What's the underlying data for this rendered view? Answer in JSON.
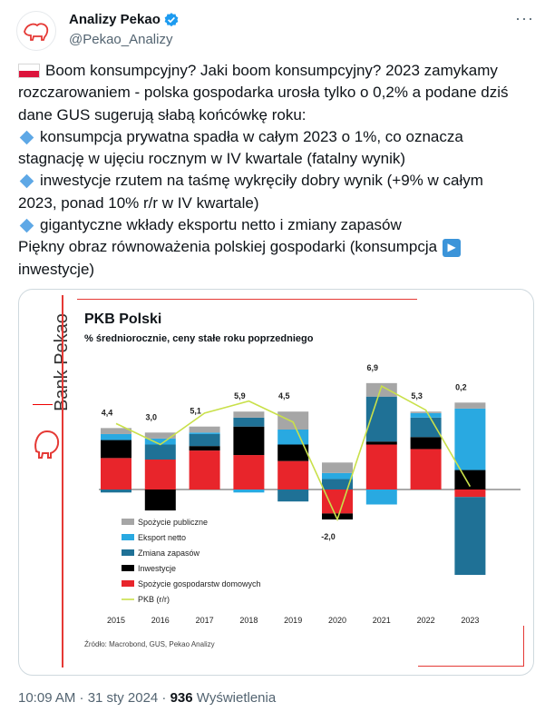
{
  "author": {
    "name": "Analizy Pekao",
    "handle": "@Pekao_Analizy"
  },
  "more_icon": "more-horizontal-icon",
  "tweet_lines": {
    "l1": "Boom konsumpcyjny? Jaki boom konsumpcyjny? 2023 zamykamy",
    "l2": "rozczarowaniem - polska gospodarka urosła tylko o 0,2% a podane dziś",
    "l3": "dane GUS sugerują słabą końcówkę roku:",
    "l4": "konsumpcja prywatna spadła w całym 2023 o 1%, co oznacza",
    "l5": "stagnację w ujęciu rocznym w IV kwartale (fatalny wynik)",
    "l6": "inwestycje rzutem na taśmę wykręciły dobry wynik (+9% w całym",
    "l7": "2023, ponad 10% r/r w IV kwartale)",
    "l8": "gigantyczne wkłady eksportu netto i zmiany zapasów",
    "l9": "Piękny obraz równoważenia polskiej gospodarki (konsumpcja",
    "l10": "inwestycje)"
  },
  "media": {
    "brand": "Bank Pekao",
    "source": "Źródło: Macrobond, GUS, Pekao Analizy"
  },
  "chart_data": {
    "type": "bar",
    "title": "PKB Polski",
    "subtitle": "% średniorocznie, ceny stałe roku poprzedniego",
    "categories": [
      "2015",
      "2016",
      "2017",
      "2018",
      "2019",
      "2020",
      "2021",
      "2022",
      "2023"
    ],
    "series": [
      {
        "name": "Spożycie gospodarstw domowych",
        "color": "#e8252b",
        "values": [
          2.1,
          2.0,
          2.6,
          2.3,
          1.9,
          -1.6,
          3.0,
          2.7,
          -0.5
        ]
      },
      {
        "name": "Inwestycje",
        "color": "#000000",
        "values": [
          1.2,
          -1.4,
          0.3,
          1.9,
          1.1,
          -0.4,
          0.2,
          0.8,
          1.3
        ]
      },
      {
        "name": "Zmiana zapasów",
        "color": "#1f7196",
        "values": [
          -0.2,
          1.0,
          0.8,
          0.6,
          -0.8,
          0.7,
          3.0,
          1.3,
          -5.2
        ]
      },
      {
        "name": "Eksport netto",
        "color": "#29a9e1",
        "values": [
          0.4,
          0.4,
          0.1,
          -0.2,
          1.0,
          0.4,
          -1.0,
          0.3,
          4.1
        ]
      },
      {
        "name": "Spożycie publiczne",
        "color": "#a6a6a6",
        "values": [
          0.4,
          0.4,
          0.4,
          0.4,
          1.2,
          0.7,
          0.9,
          0.1,
          0.4
        ]
      }
    ],
    "line": {
      "name": "PKB (r/r)",
      "color": "#c9e04a",
      "values": [
        4.4,
        3.0,
        5.1,
        5.9,
        4.5,
        -2.0,
        6.9,
        5.3,
        0.2
      ]
    },
    "data_labels": [
      "4,4",
      "3,0",
      "5,1",
      "5,9",
      "4,5",
      "-2,0",
      "6,9",
      "5,3",
      "0,2"
    ],
    "legend_order": [
      "Spożycie publiczne",
      "Eksport netto",
      "Zmiana zapasów",
      "Inwestycje",
      "Spożycie gospodarstw domowych",
      "PKB (r/r)"
    ],
    "legend_placement": "bottom-left",
    "ylim": [
      -5.2,
      7.6
    ],
    "grid": false
  },
  "footer": {
    "time": "10:09 AM · 31 sty 2024 · ",
    "views": "936",
    "views_label": " Wyświetlenia"
  }
}
